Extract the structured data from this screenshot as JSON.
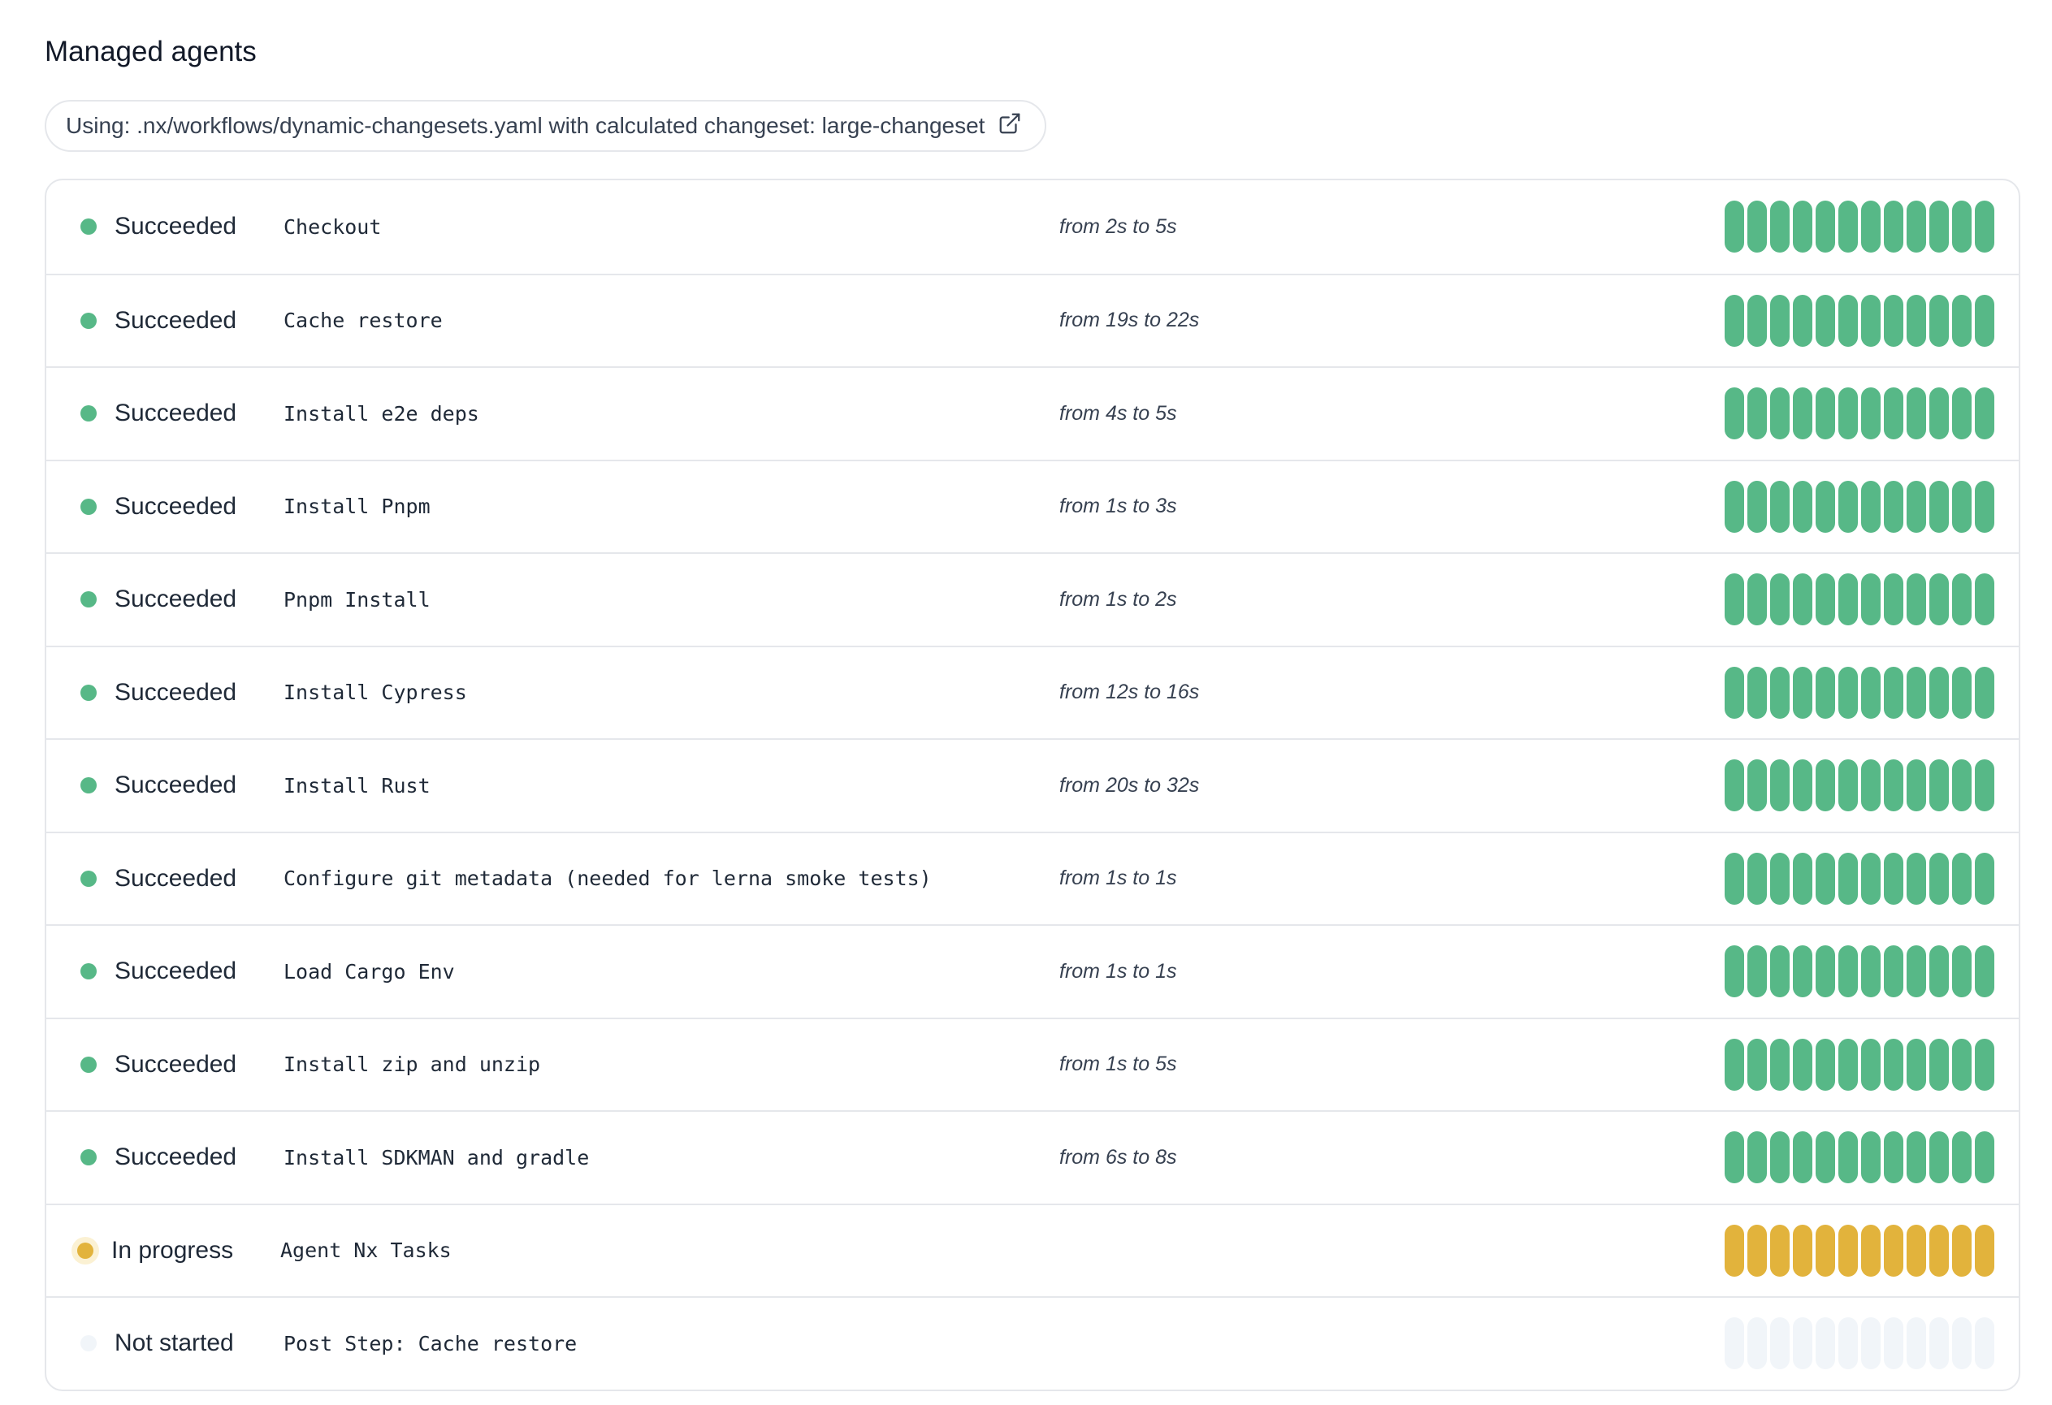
{
  "header": {
    "title": "Managed agents"
  },
  "workflow": {
    "text": "Using: .nx/workflows/dynamic-changesets.yaml with calculated changeset: large-changeset",
    "icon": "external-link-icon"
  },
  "colors": {
    "succeeded": "#57b887",
    "in_progress": "#e2b33c",
    "not_started": "#f1f5f9"
  },
  "bars_per_row": 12,
  "steps": [
    {
      "status": "Succeeded",
      "state": "succeeded",
      "name": "Checkout",
      "time": "from 2s to 5s"
    },
    {
      "status": "Succeeded",
      "state": "succeeded",
      "name": "Cache restore",
      "time": "from 19s to 22s"
    },
    {
      "status": "Succeeded",
      "state": "succeeded",
      "name": "Install e2e deps",
      "time": "from 4s to 5s"
    },
    {
      "status": "Succeeded",
      "state": "succeeded",
      "name": "Install Pnpm",
      "time": "from 1s to 3s"
    },
    {
      "status": "Succeeded",
      "state": "succeeded",
      "name": "Pnpm Install",
      "time": "from 1s to 2s"
    },
    {
      "status": "Succeeded",
      "state": "succeeded",
      "name": "Install Cypress",
      "time": "from 12s to 16s"
    },
    {
      "status": "Succeeded",
      "state": "succeeded",
      "name": "Install Rust",
      "time": "from 20s to 32s"
    },
    {
      "status": "Succeeded",
      "state": "succeeded",
      "name": "Configure git metadata (needed for lerna smoke tests)",
      "time": "from 1s to 1s"
    },
    {
      "status": "Succeeded",
      "state": "succeeded",
      "name": "Load Cargo Env",
      "time": "from 1s to 1s"
    },
    {
      "status": "Succeeded",
      "state": "succeeded",
      "name": "Install zip and unzip",
      "time": "from 1s to 5s"
    },
    {
      "status": "Succeeded",
      "state": "succeeded",
      "name": "Install SDKMAN and gradle",
      "time": "from 6s to 8s"
    },
    {
      "status": "In progress",
      "state": "in_progress",
      "name": "Agent Nx Tasks",
      "time": ""
    },
    {
      "status": "Not started",
      "state": "not_started",
      "name": "Post Step: Cache restore",
      "time": ""
    }
  ]
}
